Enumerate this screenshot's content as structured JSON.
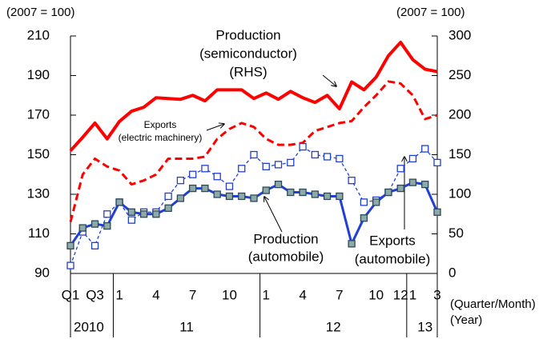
{
  "chart_data": {
    "type": "line",
    "y_label": "(2007 = 100)",
    "y2_label": "(2007 = 100)",
    "x_label": "(Quarter/Month)",
    "year_axis_label": "(Year)",
    "categories": [
      "Q1",
      null,
      "Q3",
      null,
      "1",
      null,
      null,
      "4",
      null,
      null,
      "7",
      null,
      null,
      "10",
      null,
      null,
      "1",
      null,
      null,
      "4",
      null,
      null,
      "7",
      null,
      null,
      "10",
      null,
      "12",
      "1",
      null,
      "3"
    ],
    "year_labels": [
      {
        "label": "2010",
        "start": 0,
        "end": 3
      },
      {
        "label": "11",
        "start": 4,
        "end": 15
      },
      {
        "label": "12",
        "start": 16,
        "end": 27
      },
      {
        "label": "13",
        "start": 28,
        "end": 30
      }
    ],
    "ylim": [
      90,
      210
    ],
    "yticks": [
      90,
      110,
      130,
      150,
      170,
      190,
      210
    ],
    "y2lim": [
      0,
      300
    ],
    "y2ticks": [
      0,
      50,
      100,
      150,
      200,
      250,
      300
    ],
    "series": [
      {
        "name": "Production (semiconductor) (RHS)",
        "axis": "y2",
        "color": "#ff0000",
        "line_style": "solid",
        "width": 4,
        "marker": "none",
        "values": [
          155,
          172,
          190,
          170,
          192,
          205,
          210,
          222,
          221,
          220,
          225,
          218,
          232,
          232,
          232,
          221,
          228,
          220,
          230,
          222,
          216,
          225,
          208,
          242,
          232,
          248,
          275,
          292,
          270,
          258,
          255
        ]
      },
      {
        "name": "Exports (electric machinery)",
        "color": "#ff0000",
        "line_style": "dashed",
        "width": 3,
        "marker": "none",
        "values": [
          116,
          140,
          148,
          144,
          142,
          135,
          137,
          140,
          148,
          148,
          148,
          149,
          158,
          163,
          166,
          164,
          158,
          155,
          155,
          156,
          162,
          164,
          166,
          167,
          174,
          180,
          187,
          186,
          180,
          168,
          170
        ]
      },
      {
        "name": "Exports (automobile)",
        "color": "#1f3fd6",
        "line_style": "dashed",
        "width": 1.3,
        "marker": "square-open",
        "values": [
          94,
          111,
          104,
          120,
          126,
          117,
          121,
          121,
          129,
          137,
          140,
          143,
          139,
          134,
          143,
          150,
          144,
          145,
          146,
          154,
          150,
          149,
          148,
          137,
          126,
          127,
          131,
          143,
          148,
          153,
          146
        ]
      },
      {
        "name": "Production (automobile)",
        "color": "#1f3fd6",
        "line_style": "solid",
        "width": 3,
        "marker": "square-filled",
        "values": [
          104,
          113,
          115,
          114,
          126,
          121,
          120,
          120,
          123,
          128,
          133,
          133,
          130,
          129,
          129,
          128,
          132,
          135,
          131,
          131,
          130,
          129,
          129,
          105,
          118,
          126,
          131,
          133,
          136,
          135,
          121
        ]
      }
    ],
    "annotations": [
      {
        "lines": [
          "Production",
          "(semiconductor)",
          "(RHS)"
        ]
      },
      {
        "lines": [
          "Exports",
          "(electric machinery)"
        ]
      },
      {
        "lines": [
          "Production",
          "(automobile)"
        ]
      },
      {
        "lines": [
          "Exports",
          "(automobile)"
        ]
      }
    ]
  }
}
